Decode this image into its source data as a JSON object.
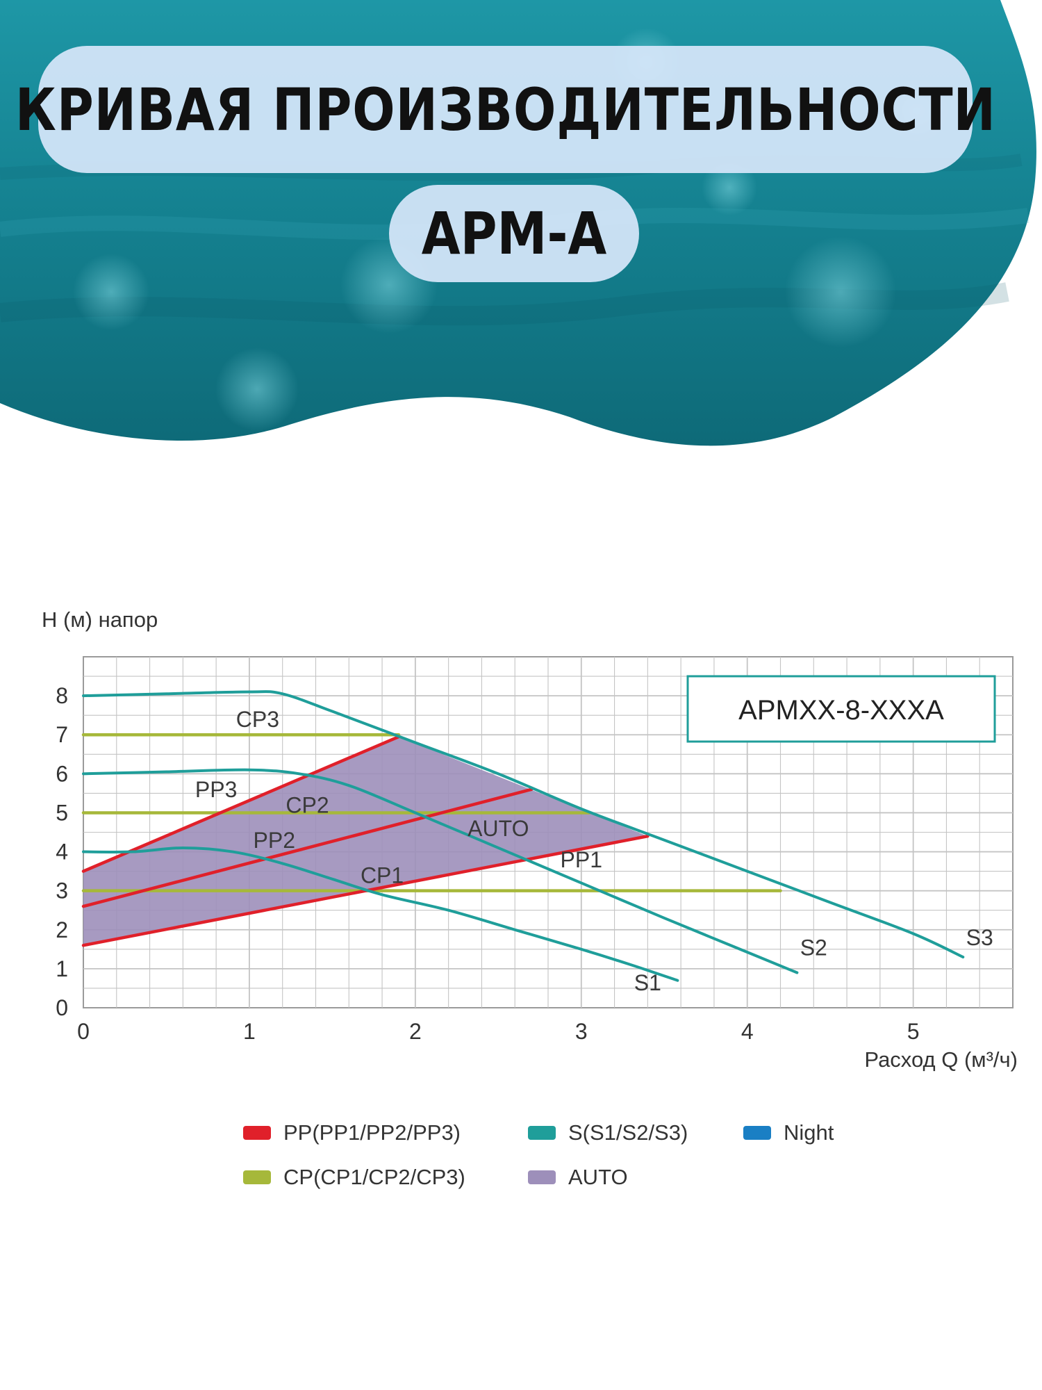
{
  "header": {
    "title": "КРИВАЯ ПРОИЗВОДИТЕЛЬНОСТИ",
    "subtitle": "APM-A"
  },
  "colors": {
    "pp": "#e0202a",
    "s": "#1f9e9a",
    "night": "#1a7fc4",
    "cp": "#a6b83a",
    "auto": "#9d8fba",
    "grid": "#c4c4c4",
    "water": "#1a8ea0"
  },
  "chart_data": {
    "type": "line",
    "model_label": "APMXX-8-XXXA",
    "ylabel": "H (м) напор",
    "xlabel": "Расход Q (м³/ч)",
    "xlim": [
      0,
      5.6
    ],
    "ylim": [
      0,
      9
    ],
    "xticks": [
      0,
      1,
      2,
      3,
      4,
      5
    ],
    "yticks": [
      0,
      1,
      2,
      3,
      4,
      5,
      6,
      7,
      8
    ],
    "grid": true,
    "series": [
      {
        "name": "S1",
        "group": "S",
        "x": [
          0,
          0.3,
          0.6,
          0.9,
          1.2,
          1.5,
          1.8,
          2.2,
          2.6,
          3.0,
          3.3,
          3.58
        ],
        "y": [
          4.0,
          4.0,
          4.1,
          4.0,
          3.7,
          3.3,
          2.9,
          2.5,
          2.0,
          1.5,
          1.1,
          0.7
        ]
      },
      {
        "name": "S2",
        "group": "S",
        "x": [
          0,
          0.5,
          1.0,
          1.3,
          1.6,
          2.0,
          2.5,
          3.0,
          3.5,
          3.9,
          4.3
        ],
        "y": [
          6.0,
          6.05,
          6.1,
          6.0,
          5.7,
          5.0,
          4.1,
          3.2,
          2.3,
          1.6,
          0.9
        ]
      },
      {
        "name": "S3",
        "group": "S",
        "x": [
          0,
          0.5,
          1.0,
          1.2,
          1.5,
          2.0,
          2.5,
          3.0,
          3.5,
          4.0,
          4.5,
          5.0,
          5.3
        ],
        "y": [
          8.0,
          8.05,
          8.1,
          8.05,
          7.6,
          6.8,
          6.0,
          5.1,
          4.3,
          3.5,
          2.7,
          1.9,
          1.3
        ]
      },
      {
        "name": "PP1",
        "group": "PP",
        "x": [
          0,
          3.4
        ],
        "y": [
          1.6,
          4.4
        ]
      },
      {
        "name": "PP2",
        "group": "PP",
        "x": [
          0,
          2.7
        ],
        "y": [
          2.6,
          5.6
        ]
      },
      {
        "name": "PP3",
        "group": "PP",
        "x": [
          0,
          1.9
        ],
        "y": [
          3.5,
          6.95
        ]
      },
      {
        "name": "CP1",
        "group": "CP",
        "x": [
          0,
          4.2
        ],
        "y": [
          3.0,
          3.0
        ]
      },
      {
        "name": "CP2",
        "group": "CP",
        "x": [
          0,
          3.05
        ],
        "y": [
          5.0,
          5.0
        ]
      },
      {
        "name": "CP3",
        "group": "CP",
        "x": [
          0,
          1.9
        ],
        "y": [
          7.0,
          7.0
        ]
      }
    ],
    "auto_region": {
      "name": "AUTO",
      "x": [
        0,
        1.9,
        3.4,
        0
      ],
      "y": [
        3.5,
        6.95,
        4.4,
        1.6
      ]
    },
    "annotations": [
      {
        "text": "CP3",
        "x": 1.05,
        "y": 7.2
      },
      {
        "text": "PP3",
        "x": 0.8,
        "y": 5.4
      },
      {
        "text": "CP2",
        "x": 1.35,
        "y": 5.0
      },
      {
        "text": "AUTO",
        "x": 2.5,
        "y": 4.4
      },
      {
        "text": "PP2",
        "x": 1.15,
        "y": 4.1
      },
      {
        "text": "PP1",
        "x": 3.0,
        "y": 3.6
      },
      {
        "text": "CP1",
        "x": 1.8,
        "y": 3.2
      },
      {
        "text": "S1",
        "x": 3.4,
        "y": 0.45
      },
      {
        "text": "S2",
        "x": 4.4,
        "y": 1.35
      },
      {
        "text": "S3",
        "x": 5.4,
        "y": 1.6
      }
    ],
    "legend": [
      {
        "label": "PP(PP1/PP2/PP3)",
        "color_key": "pp"
      },
      {
        "label": "S(S1/S2/S3)",
        "color_key": "s"
      },
      {
        "label": "Night",
        "color_key": "night"
      },
      {
        "label": "CP(CP1/CP2/CP3)",
        "color_key": "cp"
      },
      {
        "label": "AUTO",
        "color_key": "auto"
      }
    ],
    "legend_position": "bottom"
  }
}
